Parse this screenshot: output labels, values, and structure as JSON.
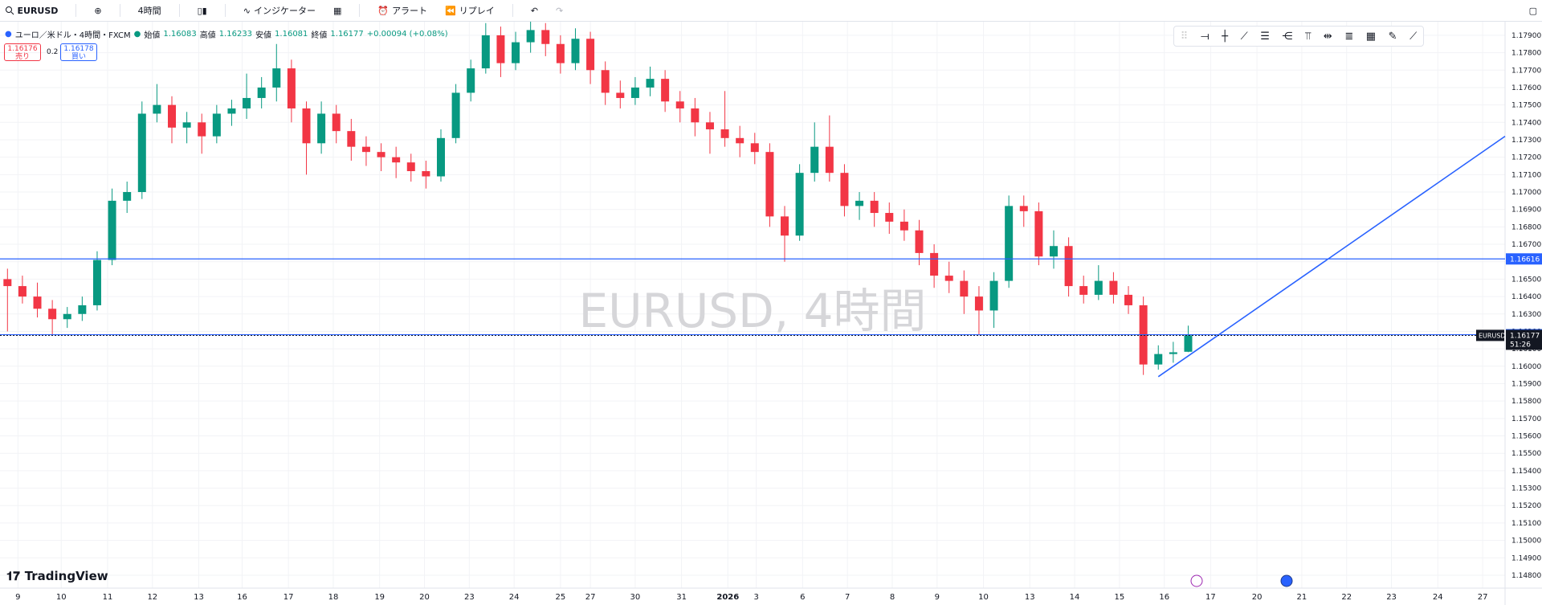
{
  "toolbar": {
    "symbol": "EURUSD",
    "interval": "4時間",
    "indicators": "インジケーター",
    "alerts": "アラート",
    "replay": "リプレイ"
  },
  "legend": {
    "name": "ユーロ／米ドル・4時間・FXCM",
    "open_label": "始値",
    "high_label": "高値",
    "low_label": "安値",
    "close_label": "終値",
    "change": "+0.00094 (+0.08%)"
  },
  "trade": {
    "sell_price": "1.16176",
    "sell": "売り",
    "spread": "0.2",
    "buy_price": "1.16178",
    "buy": "買い"
  },
  "watermark": "EURUSD, 4時間",
  "brand": "TradingView",
  "price_tag": {
    "symbol": "EURUSD",
    "countdown": "51:26"
  },
  "chart_data": {
    "type": "candlestick",
    "up_color": "#089981",
    "down_color": "#f23645",
    "line_color": "#2962ff",
    "grid": true,
    "ylim": [
      1.14726,
      1.17978
    ],
    "xlim": [
      -0.5,
      100.2
    ],
    "yticks": [
      {
        "value": 1.148,
        "label": "1.14800"
      },
      {
        "value": 1.149,
        "label": "1.14900"
      },
      {
        "value": 1.15,
        "label": "1.15000"
      },
      {
        "value": 1.151,
        "label": "1.15100"
      },
      {
        "value": 1.152,
        "label": "1.15200"
      },
      {
        "value": 1.153,
        "label": "1.15300"
      },
      {
        "value": 1.154,
        "label": "1.15400"
      },
      {
        "value": 1.155,
        "label": "1.15500"
      },
      {
        "value": 1.156,
        "label": "1.15600"
      },
      {
        "value": 1.157,
        "label": "1.15700"
      },
      {
        "value": 1.158,
        "label": "1.15800"
      },
      {
        "value": 1.159,
        "label": "1.15900"
      },
      {
        "value": 1.16,
        "label": "1.16000"
      },
      {
        "value": 1.161,
        "label": "1.16100"
      },
      {
        "value": 1.162,
        "label": "1.16200"
      },
      {
        "value": 1.163,
        "label": "1.16300"
      },
      {
        "value": 1.164,
        "label": "1.16400"
      },
      {
        "value": 1.165,
        "label": "1.16500"
      },
      {
        "value": 1.166,
        "label": "1.16600"
      },
      {
        "value": 1.167,
        "label": "1.16700"
      },
      {
        "value": 1.168,
        "label": "1.16800"
      },
      {
        "value": 1.169,
        "label": "1.16900"
      },
      {
        "value": 1.17,
        "label": "1.17000"
      },
      {
        "value": 1.171,
        "label": "1.17100"
      },
      {
        "value": 1.172,
        "label": "1.17200"
      },
      {
        "value": 1.173,
        "label": "1.17300"
      },
      {
        "value": 1.174,
        "label": "1.17400"
      },
      {
        "value": 1.175,
        "label": "1.17500"
      },
      {
        "value": 1.176,
        "label": "1.17600"
      },
      {
        "value": 1.177,
        "label": "1.17700"
      },
      {
        "value": 1.178,
        "label": "1.17800"
      },
      {
        "value": 1.179,
        "label": "1.17900"
      }
    ],
    "xticks": [
      {
        "value": 0.7,
        "label": "9"
      },
      {
        "value": 3.6,
        "label": "10"
      },
      {
        "value": 6.7,
        "label": "11"
      },
      {
        "value": 9.7,
        "label": "12"
      },
      {
        "value": 12.8,
        "label": "13"
      },
      {
        "value": 15.7,
        "label": "16"
      },
      {
        "value": 18.8,
        "label": "17"
      },
      {
        "value": 21.8,
        "label": "18"
      },
      {
        "value": 24.9,
        "label": "19"
      },
      {
        "value": 27.9,
        "label": "20"
      },
      {
        "value": 30.9,
        "label": "23"
      },
      {
        "value": 33.9,
        "label": "24"
      },
      {
        "value": 37.0,
        "label": "25"
      },
      {
        "value": 39.0,
        "label": "27"
      },
      {
        "value": 42.0,
        "label": "30"
      },
      {
        "value": 45.1,
        "label": "31"
      },
      {
        "value": 48.2,
        "label": "2026"
      },
      {
        "value": 50.1,
        "label": "3"
      },
      {
        "value": 53.2,
        "label": "6"
      },
      {
        "value": 56.2,
        "label": "7"
      },
      {
        "value": 59.2,
        "label": "8"
      },
      {
        "value": 62.2,
        "label": "9"
      },
      {
        "value": 65.3,
        "label": "10"
      },
      {
        "value": 68.4,
        "label": "13"
      },
      {
        "value": 71.4,
        "label": "14"
      },
      {
        "value": 74.4,
        "label": "15"
      },
      {
        "value": 77.4,
        "label": "16"
      },
      {
        "value": 80.5,
        "label": "17"
      },
      {
        "value": 83.6,
        "label": "20"
      },
      {
        "value": 86.6,
        "label": "21"
      },
      {
        "value": 89.6,
        "label": "22"
      },
      {
        "value": 92.6,
        "label": "23"
      },
      {
        "value": 95.7,
        "label": "24"
      },
      {
        "value": 98.7,
        "label": "27"
      }
    ],
    "hlines": [
      1.16616,
      1.16181
    ],
    "trendline": [
      [
        77,
        1.1594
      ],
      [
        100.2,
        1.1732
      ]
    ],
    "ohlc": [
      [
        1.165,
        1.1656,
        1.162,
        1.1646
      ],
      [
        1.1646,
        1.1652,
        1.1636,
        1.164
      ],
      [
        1.164,
        1.1648,
        1.1628,
        1.1633
      ],
      [
        1.1633,
        1.1638,
        1.1618,
        1.1627
      ],
      [
        1.1627,
        1.1634,
        1.1622,
        1.163
      ],
      [
        1.163,
        1.164,
        1.1626,
        1.1635
      ],
      [
        1.1635,
        1.1666,
        1.1632,
        1.1661
      ],
      [
        1.1661,
        1.1702,
        1.1658,
        1.1695
      ],
      [
        1.1695,
        1.1706,
        1.1688,
        1.17
      ],
      [
        1.17,
        1.1752,
        1.1696,
        1.1745
      ],
      [
        1.1745,
        1.1762,
        1.174,
        1.175
      ],
      [
        1.175,
        1.1755,
        1.1728,
        1.1737
      ],
      [
        1.1737,
        1.1746,
        1.1728,
        1.174
      ],
      [
        1.174,
        1.1745,
        1.1722,
        1.1732
      ],
      [
        1.1732,
        1.175,
        1.1728,
        1.1745
      ],
      [
        1.1745,
        1.1753,
        1.1738,
        1.1748
      ],
      [
        1.1748,
        1.1768,
        1.1742,
        1.1754
      ],
      [
        1.1754,
        1.1766,
        1.1748,
        1.176
      ],
      [
        1.176,
        1.1785,
        1.1752,
        1.1771
      ],
      [
        1.1771,
        1.1776,
        1.174,
        1.1748
      ],
      [
        1.1748,
        1.1752,
        1.171,
        1.1728
      ],
      [
        1.1728,
        1.1752,
        1.1722,
        1.1745
      ],
      [
        1.1745,
        1.175,
        1.1728,
        1.1735
      ],
      [
        1.1735,
        1.1742,
        1.1718,
        1.1726
      ],
      [
        1.1726,
        1.1732,
        1.1715,
        1.1723
      ],
      [
        1.1723,
        1.1728,
        1.1712,
        1.172
      ],
      [
        1.172,
        1.1726,
        1.1708,
        1.1717
      ],
      [
        1.1717,
        1.1722,
        1.1706,
        1.1712
      ],
      [
        1.1712,
        1.1718,
        1.1702,
        1.1709
      ],
      [
        1.1709,
        1.1736,
        1.1706,
        1.1731
      ],
      [
        1.1731,
        1.1762,
        1.1728,
        1.1757
      ],
      [
        1.1757,
        1.1776,
        1.1752,
        1.1771
      ],
      [
        1.1771,
        1.1797,
        1.1768,
        1.179
      ],
      [
        1.179,
        1.1795,
        1.1766,
        1.1774
      ],
      [
        1.1774,
        1.1792,
        1.177,
        1.1786
      ],
      [
        1.1786,
        1.18,
        1.178,
        1.1793
      ],
      [
        1.1793,
        1.1797,
        1.1778,
        1.1785
      ],
      [
        1.1785,
        1.179,
        1.1768,
        1.1774
      ],
      [
        1.1774,
        1.1794,
        1.177,
        1.1788
      ],
      [
        1.1788,
        1.1792,
        1.1762,
        1.177
      ],
      [
        1.177,
        1.1775,
        1.175,
        1.1757
      ],
      [
        1.1757,
        1.1764,
        1.1748,
        1.1754
      ],
      [
        1.1754,
        1.1766,
        1.175,
        1.176
      ],
      [
        1.176,
        1.1772,
        1.1755,
        1.1765
      ],
      [
        1.1765,
        1.177,
        1.1746,
        1.1752
      ],
      [
        1.1752,
        1.1758,
        1.174,
        1.1748
      ],
      [
        1.1748,
        1.1754,
        1.1732,
        1.174
      ],
      [
        1.174,
        1.1746,
        1.1722,
        1.1736
      ],
      [
        1.1736,
        1.1758,
        1.1726,
        1.1731
      ],
      [
        1.1731,
        1.1738,
        1.172,
        1.1728
      ],
      [
        1.1728,
        1.1734,
        1.1716,
        1.1723
      ],
      [
        1.1723,
        1.1728,
        1.168,
        1.1686
      ],
      [
        1.1686,
        1.1692,
        1.166,
        1.1675
      ],
      [
        1.1675,
        1.1716,
        1.1672,
        1.1711
      ],
      [
        1.1711,
        1.174,
        1.1706,
        1.1726
      ],
      [
        1.1726,
        1.1744,
        1.1706,
        1.1711
      ],
      [
        1.1711,
        1.1716,
        1.1686,
        1.1692
      ],
      [
        1.1692,
        1.17,
        1.1684,
        1.1695
      ],
      [
        1.1695,
        1.17,
        1.168,
        1.1688
      ],
      [
        1.1688,
        1.1694,
        1.1676,
        1.1683
      ],
      [
        1.1683,
        1.169,
        1.1672,
        1.1678
      ],
      [
        1.1678,
        1.1684,
        1.1658,
        1.1665
      ],
      [
        1.1665,
        1.167,
        1.1645,
        1.1652
      ],
      [
        1.1652,
        1.166,
        1.1642,
        1.1649
      ],
      [
        1.1649,
        1.1655,
        1.163,
        1.164
      ],
      [
        1.164,
        1.1646,
        1.1618,
        1.1632
      ],
      [
        1.1632,
        1.1654,
        1.1622,
        1.1649
      ],
      [
        1.1649,
        1.1698,
        1.1645,
        1.1692
      ],
      [
        1.1692,
        1.1698,
        1.168,
        1.1689
      ],
      [
        1.1689,
        1.1694,
        1.1658,
        1.1663
      ],
      [
        1.1663,
        1.1678,
        1.1656,
        1.1669
      ],
      [
        1.1669,
        1.1674,
        1.164,
        1.1646
      ],
      [
        1.1646,
        1.1652,
        1.1636,
        1.1641
      ],
      [
        1.1641,
        1.1658,
        1.1638,
        1.1649
      ],
      [
        1.1649,
        1.1654,
        1.1636,
        1.1641
      ],
      [
        1.1641,
        1.1646,
        1.163,
        1.1635
      ],
      [
        1.1635,
        1.164,
        1.1595,
        1.1601
      ],
      [
        1.1601,
        1.1612,
        1.1598,
        1.1607
      ],
      [
        1.1607,
        1.1614,
        1.1602,
        1.1608
      ],
      [
        1.16083,
        1.16233,
        1.16081,
        1.16177
      ]
    ]
  }
}
